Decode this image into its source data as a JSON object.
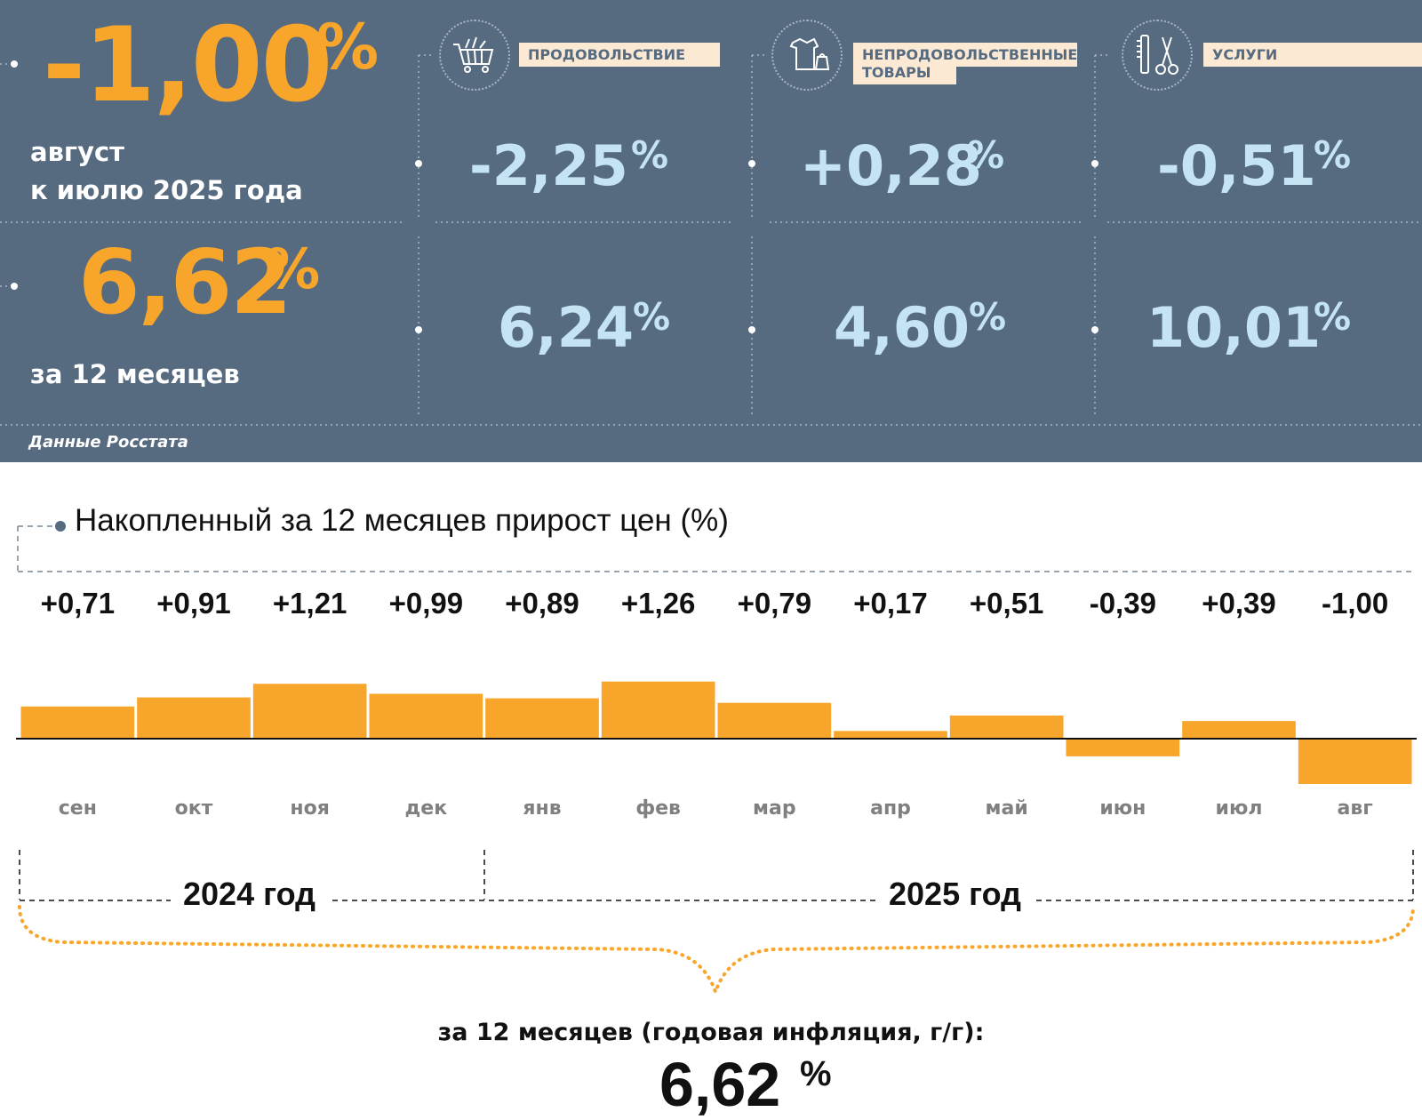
{
  "header": {
    "monthly": {
      "value": "-1,00",
      "pct": "%",
      "line1": "август",
      "line2": "к июлю 2025 года"
    },
    "annual": {
      "value": "6,62",
      "pct": "%",
      "label": "за 12 месяцев"
    },
    "categories": [
      {
        "name": "ПРОДОВОЛЬСТВИЕ",
        "name2": "",
        "monthly": "-2,25",
        "annual": "6,24",
        "icon": "shopping-cart-icon"
      },
      {
        "name": "НЕПРОДОВОЛЬСТВЕННЫЕ",
        "name2": "ТОВАРЫ",
        "monthly": "+0,28",
        "annual": "4,60",
        "icon": "clothing-icon"
      },
      {
        "name": "УСЛУГИ",
        "name2": "",
        "monthly": "-0,51",
        "annual": "10,01",
        "icon": "scissors-comb-icon"
      }
    ],
    "pct": "%",
    "source": "Данные Росстата"
  },
  "chart_data": {
    "type": "bar",
    "title": "Накопленный за 12 месяцев прирост цен (%)",
    "categories": [
      "сен",
      "окт",
      "ноя",
      "дек",
      "янв",
      "фев",
      "мар",
      "апр",
      "май",
      "июн",
      "июл",
      "авг"
    ],
    "values": [
      0.71,
      0.91,
      1.21,
      0.99,
      0.89,
      1.26,
      0.79,
      0.17,
      0.51,
      -0.39,
      0.39,
      -1.0
    ],
    "value_labels": [
      "+0,71",
      "+0,91",
      "+1,21",
      "+0,99",
      "+0,89",
      "+1,26",
      "+0,79",
      "+0,17",
      "+0,51",
      "-0,39",
      "+0,39",
      "-1,00"
    ],
    "ylim": [
      -1.0,
      1.26
    ],
    "bar_color": "#f7a62b",
    "years": [
      {
        "label": "2024 год"
      },
      {
        "label": "2025 год"
      }
    ]
  },
  "footer": {
    "label": "за 12 месяцев (годовая инфляция, г/г):",
    "value": "6,62",
    "pct": "%"
  },
  "colors": {
    "panel": "#566a80",
    "accent": "#f7a62b",
    "value_blue": "#c4e4f3",
    "label_bg": "#fbe9d4"
  }
}
